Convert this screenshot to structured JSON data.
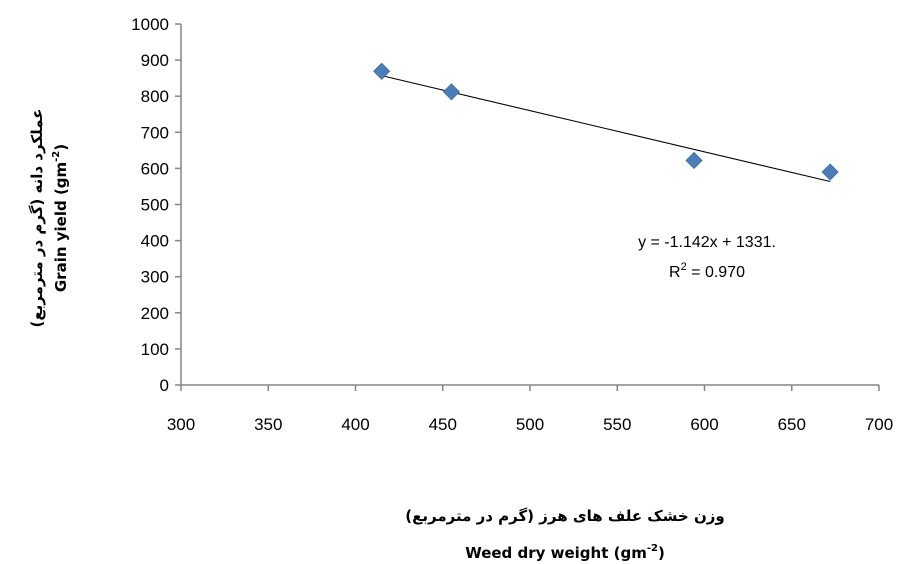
{
  "chart_data": {
    "type": "scatter",
    "x": [
      415,
      455,
      594,
      672
    ],
    "y": [
      869,
      812,
      622,
      590
    ],
    "xlim": [
      300,
      700
    ],
    "ylim": [
      0,
      1000
    ],
    "x_ticks": [
      300,
      350,
      400,
      450,
      500,
      550,
      600,
      650,
      700
    ],
    "y_ticks": [
      0,
      100,
      200,
      300,
      400,
      500,
      600,
      700,
      800,
      900,
      1000
    ],
    "xlabel_fa": "وزن خشک علف های هرز (گرم در مترمربع)",
    "xlabel_en": "Weed dry weight (gm",
    "xlabel_en_sup": "-2",
    "xlabel_en_close": ")",
    "ylabel_fa": "عملکرد دانه (گرم در مترمربع)",
    "ylabel_en": "Grain yield (gm",
    "ylabel_en_sup": "-2",
    "ylabel_en_close": ")",
    "trendline": {
      "slope": -1.142,
      "intercept": 1331
    },
    "equation_text": "y = -1.142x + 1331.",
    "r2_prefix": "R",
    "r2_sup": "2",
    "r2_value": " = 0.970",
    "grid": false,
    "legend": "none",
    "marker_color": "#4a7ebb",
    "marker_shape": "diamond"
  }
}
